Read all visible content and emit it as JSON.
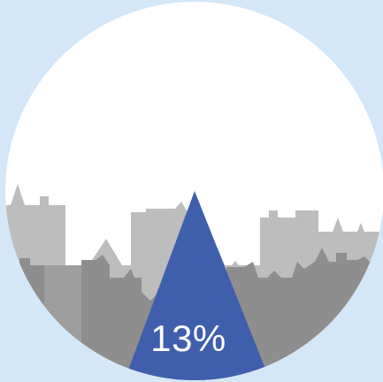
{
  "graphic": {
    "percentage_label": "13%",
    "percentage_value": 0.13,
    "colors": {
      "background": "#d3e7f9",
      "circle": "#ffffff",
      "skyline_back": "#bdbdbd",
      "skyline_front": "#8e8e8e",
      "triangle": "#3f5fad",
      "label": "#ffffff"
    }
  }
}
